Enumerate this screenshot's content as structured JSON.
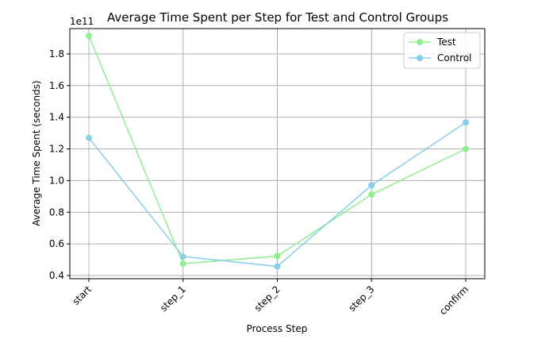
{
  "chart_data": {
    "type": "line",
    "title": "Average Time Spent per Step for Test and Control Groups",
    "xlabel": "Process Step",
    "ylabel": "Average Time Spent (seconds)",
    "y_scale_label": "1e11",
    "categories": [
      "start",
      "step_1",
      "step_2",
      "step_3",
      "confirm"
    ],
    "ylim": [
      0.38,
      1.96
    ],
    "yticks": [
      0.4,
      0.6,
      0.8,
      1.0,
      1.2,
      1.4,
      1.6,
      1.8
    ],
    "ytick_labels": [
      "0.4",
      "0.6",
      "0.8",
      "1.0",
      "1.2",
      "1.4",
      "1.6",
      "1.8"
    ],
    "grid": true,
    "legend_position": "top-right",
    "series": [
      {
        "name": "Test",
        "color": "#90ee90",
        "values": [
          1.915,
          0.475,
          0.523,
          0.912,
          1.2
        ]
      },
      {
        "name": "Control",
        "color": "#87ceeb",
        "values": [
          1.27,
          0.52,
          0.458,
          0.97,
          1.367
        ]
      }
    ]
  }
}
